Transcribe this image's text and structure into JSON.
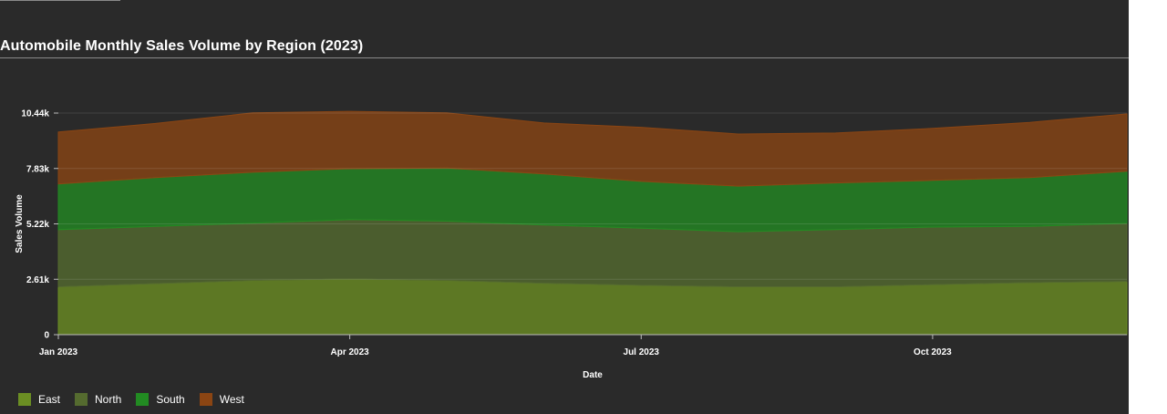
{
  "chart_data": {
    "type": "area",
    "stacked": true,
    "title": "Automobile Monthly Sales Volume by Region (2023)",
    "xlabel": "Date",
    "ylabel": "Sales Volume",
    "x_axis_type": "date",
    "x": [
      "2023-01",
      "2023-02",
      "2023-03",
      "2023-04",
      "2023-05",
      "2023-06",
      "2023-07",
      "2023-08",
      "2023-09",
      "2023-10",
      "2023-11",
      "2023-12"
    ],
    "x_ticks": [
      {
        "date": "2023-01",
        "label": "Jan 2023"
      },
      {
        "date": "2023-04",
        "label": "Apr 2023"
      },
      {
        "date": "2023-07",
        "label": "Jul 2023"
      },
      {
        "date": "2023-10",
        "label": "Oct 2023"
      }
    ],
    "ylim": [
      0,
      10440
    ],
    "y_ticks": [
      {
        "value": 0,
        "label": "0"
      },
      {
        "value": 2610,
        "label": "2.61k"
      },
      {
        "value": 5220,
        "label": "5.22k"
      },
      {
        "value": 7830,
        "label": "7.83k"
      },
      {
        "value": 10440,
        "label": "10.44k"
      }
    ],
    "grid": "horizontal",
    "legend_position": "bottom-left",
    "series": [
      {
        "name": "East",
        "color": "#6b8e23",
        "values": [
          2250,
          2400,
          2550,
          2620,
          2550,
          2420,
          2320,
          2250,
          2250,
          2350,
          2450,
          2500
        ]
      },
      {
        "name": "North",
        "color": "#556b2f",
        "values": [
          2700,
          2700,
          2700,
          2800,
          2800,
          2750,
          2700,
          2600,
          2700,
          2720,
          2650,
          2750
        ]
      },
      {
        "name": "South",
        "color": "#228b22",
        "values": [
          2150,
          2300,
          2400,
          2400,
          2500,
          2400,
          2200,
          2150,
          2200,
          2200,
          2300,
          2450
        ]
      },
      {
        "name": "West",
        "color": "#8b4513",
        "values": [
          2450,
          2550,
          2800,
          2700,
          2600,
          2400,
          2550,
          2450,
          2350,
          2450,
          2600,
          2700
        ]
      }
    ]
  }
}
